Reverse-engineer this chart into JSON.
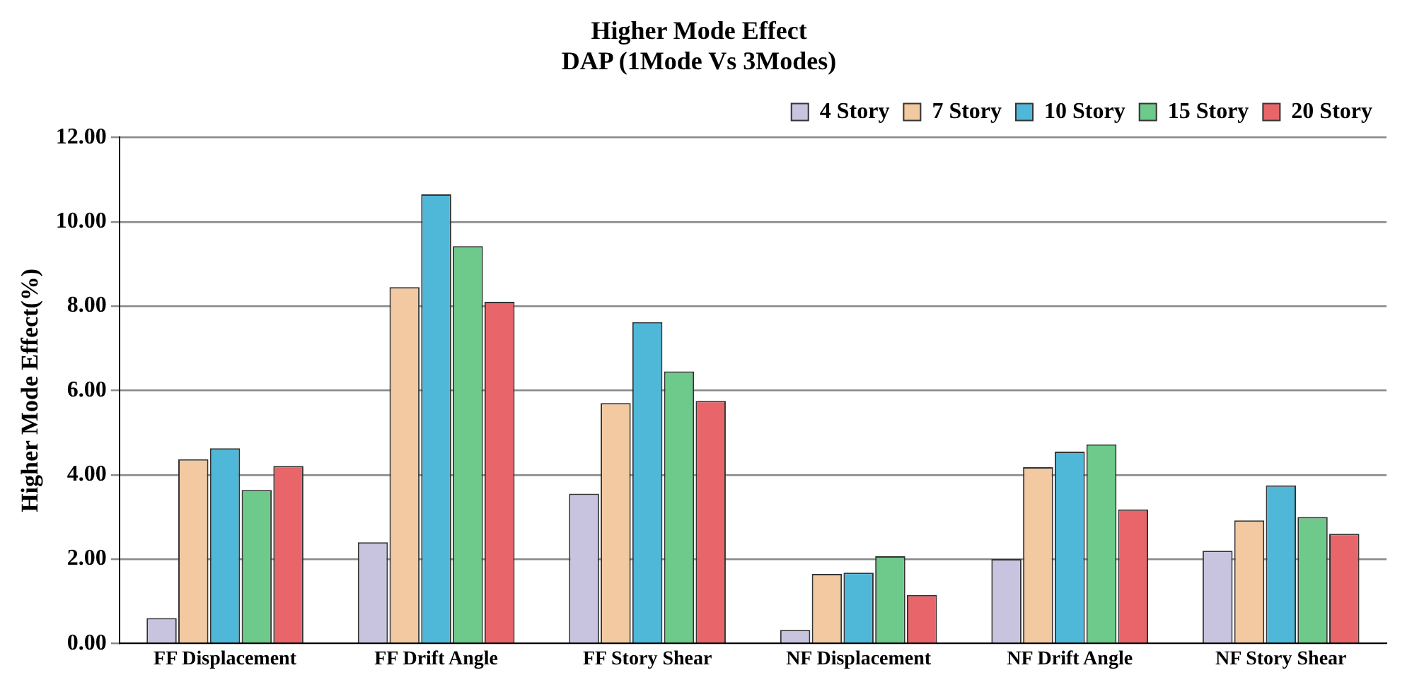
{
  "chart_data": {
    "type": "bar",
    "title": "Higher Mode Effect",
    "subtitle": "DAP (1Mode Vs 3Modes)",
    "ylabel": "Higher Mode Effect(%)",
    "categories": [
      "FF Displacement",
      "FF Drift Angle",
      "FF Story Shear",
      "NF Displacement",
      "NF Drift Angle",
      "NF Story Shear"
    ],
    "series": [
      {
        "name": "4 Story",
        "color": "#c8c4e0",
        "values": [
          0.6,
          2.4,
          3.55,
          0.32,
          2.0,
          2.2
        ]
      },
      {
        "name": "7 Story",
        "color": "#f2c9a0",
        "values": [
          4.37,
          8.45,
          5.7,
          1.65,
          4.18,
          2.92
        ]
      },
      {
        "name": "10 Story",
        "color": "#4fb8d8",
        "values": [
          4.63,
          10.65,
          7.62,
          1.68,
          4.55,
          3.75
        ]
      },
      {
        "name": "15 Story",
        "color": "#6dca8a",
        "values": [
          3.64,
          9.42,
          6.45,
          2.07,
          4.72,
          3.0
        ]
      },
      {
        "name": "20 Story",
        "color": "#e8666a",
        "values": [
          4.21,
          8.1,
          5.75,
          1.15,
          3.18,
          2.6
        ]
      }
    ],
    "ylim": [
      0,
      12
    ],
    "yticks": [
      {
        "value": 0,
        "label": "0.00"
      },
      {
        "value": 2,
        "label": "2.00"
      },
      {
        "value": 4,
        "label": "4.00"
      },
      {
        "value": 6,
        "label": "6.00"
      },
      {
        "value": 8,
        "label": "8.00"
      },
      {
        "value": 10,
        "label": "10.00"
      },
      {
        "value": 12,
        "label": "12.00"
      }
    ],
    "grid": "y",
    "legend": "top right"
  }
}
